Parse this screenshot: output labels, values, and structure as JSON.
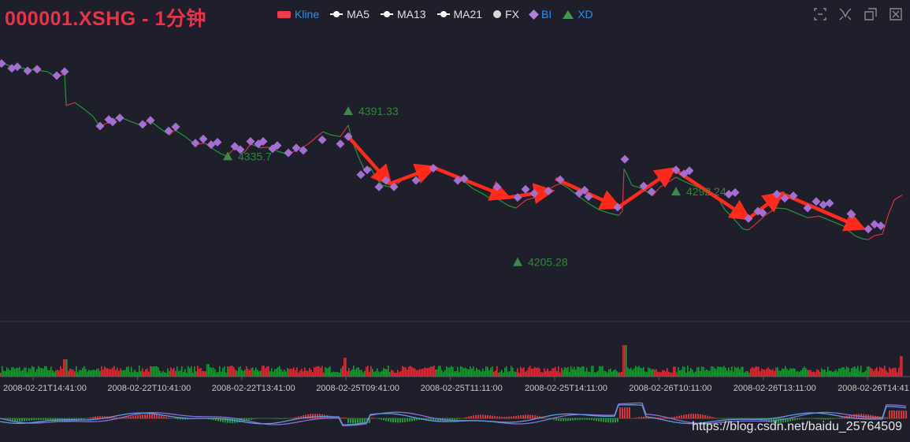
{
  "title": "000001.XSHG - 1分钟",
  "legend": [
    {
      "label": "Kline",
      "icon": "rect",
      "color": "#ee3a4e"
    },
    {
      "label": "MA5",
      "icon": "line",
      "color": "#ffffff"
    },
    {
      "label": "MA13",
      "icon": "line",
      "color": "#ffffff"
    },
    {
      "label": "MA21",
      "icon": "line",
      "color": "#ffffff"
    },
    {
      "label": "FX",
      "icon": "dot",
      "color": "#d9d9d9"
    },
    {
      "label": "BI",
      "icon": "diamond",
      "color": "#b07fe0"
    },
    {
      "label": "XD",
      "icon": "triangle",
      "color": "#3d9a48"
    }
  ],
  "toolbox": [
    "zoom-select-icon",
    "zoom-reset-icon",
    "restore-icon",
    "save-image-icon"
  ],
  "watermark": "https://blog.csdn.net/baidu_25764509",
  "colors": {
    "background": "#1f1f2b",
    "up": "#d5343f",
    "down": "#1c9a3a",
    "bi": "#a46fd0",
    "xd": "#3d8a48",
    "arrow": "#ff2a1a",
    "label": "#2d8a3a"
  },
  "chart_data": {
    "type": "line",
    "title": "000001.XSHG - 1分钟",
    "x_ticks": [
      "2008-02-21T14:41:00",
      "2008-02-22T10:41:00",
      "2008-02-22T13:41:00",
      "2008-02-25T09:41:00",
      "2008-02-25T11:11:00",
      "2008-02-25T14:11:00",
      "2008-02-26T10:11:00",
      "2008-02-26T13:11:00",
      "2008-02-26T14:41"
    ],
    "price_ylim": [
      4140,
      4470
    ],
    "price": [
      [
        0,
        4452
      ],
      [
        15,
        4446
      ],
      [
        30,
        4444
      ],
      [
        45,
        4442
      ],
      [
        60,
        4440
      ],
      [
        70,
        4434
      ],
      [
        82,
        4437
      ],
      [
        84,
        4398
      ],
      [
        95,
        4402
      ],
      [
        105,
        4395
      ],
      [
        118,
        4385
      ],
      [
        127,
        4372
      ],
      [
        138,
        4378
      ],
      [
        152,
        4384
      ],
      [
        165,
        4379
      ],
      [
        178,
        4374
      ],
      [
        190,
        4380
      ],
      [
        203,
        4370
      ],
      [
        215,
        4362
      ],
      [
        222,
        4368
      ],
      [
        235,
        4360
      ],
      [
        248,
        4350
      ],
      [
        260,
        4352
      ],
      [
        270,
        4345
      ],
      [
        280,
        4339
      ],
      [
        288,
        4336
      ],
      [
        298,
        4346
      ],
      [
        310,
        4340
      ],
      [
        318,
        4351
      ],
      [
        330,
        4346
      ],
      [
        340,
        4347
      ],
      [
        352,
        4342
      ],
      [
        365,
        4338
      ],
      [
        378,
        4344
      ],
      [
        390,
        4350
      ],
      [
        400,
        4358
      ],
      [
        410,
        4366
      ],
      [
        420,
        4362
      ],
      [
        432,
        4360
      ],
      [
        442,
        4374
      ],
      [
        447,
        4355
      ],
      [
        455,
        4335
      ],
      [
        462,
        4320
      ],
      [
        470,
        4322
      ],
      [
        478,
        4308
      ],
      [
        485,
        4300
      ],
      [
        495,
        4298
      ],
      [
        505,
        4302
      ],
      [
        515,
        4310
      ],
      [
        528,
        4314
      ],
      [
        545,
        4322
      ],
      [
        552,
        4322
      ],
      [
        565,
        4318
      ],
      [
        580,
        4310
      ],
      [
        590,
        4304
      ],
      [
        600,
        4296
      ],
      [
        612,
        4290
      ],
      [
        625,
        4282
      ],
      [
        632,
        4283
      ],
      [
        645,
        4275
      ],
      [
        655,
        4272
      ],
      [
        668,
        4282
      ],
      [
        680,
        4285
      ],
      [
        692,
        4292
      ],
      [
        705,
        4300
      ],
      [
        712,
        4302
      ],
      [
        722,
        4296
      ],
      [
        735,
        4286
      ],
      [
        748,
        4277
      ],
      [
        760,
        4270
      ],
      [
        772,
        4266
      ],
      [
        785,
        4263
      ],
      [
        790,
        4268
      ],
      [
        792,
        4320
      ],
      [
        795,
        4315
      ],
      [
        802,
        4300
      ],
      [
        815,
        4296
      ],
      [
        828,
        4287
      ],
      [
        838,
        4298
      ],
      [
        850,
        4305
      ],
      [
        858,
        4310
      ],
      [
        870,
        4304
      ],
      [
        885,
        4298
      ],
      [
        900,
        4292
      ],
      [
        910,
        4286
      ],
      [
        920,
        4270
      ],
      [
        932,
        4258
      ],
      [
        943,
        4246
      ],
      [
        950,
        4245
      ],
      [
        960,
        4253
      ],
      [
        970,
        4262
      ],
      [
        985,
        4272
      ],
      [
        998,
        4271
      ],
      [
        1010,
        4266
      ],
      [
        1025,
        4260
      ],
      [
        1040,
        4262
      ],
      [
        1055,
        4256
      ],
      [
        1070,
        4250
      ],
      [
        1085,
        4238
      ],
      [
        1095,
        4234
      ],
      [
        1102,
        4233
      ],
      [
        1110,
        4238
      ],
      [
        1120,
        4240
      ],
      [
        1128,
        4265
      ],
      [
        1135,
        4282
      ],
      [
        1145,
        4288
      ]
    ],
    "bi": [
      [
        2,
        4450
      ],
      [
        15,
        4444
      ],
      [
        22,
        4446
      ],
      [
        35,
        4441
      ],
      [
        47,
        4443
      ],
      [
        72,
        4435
      ],
      [
        82,
        4440
      ],
      [
        127,
        4373
      ],
      [
        138,
        4381
      ],
      [
        143,
        4378
      ],
      [
        152,
        4383
      ],
      [
        181,
        4375
      ],
      [
        191,
        4380
      ],
      [
        214,
        4367
      ],
      [
        223,
        4372
      ],
      [
        248,
        4352
      ],
      [
        258,
        4357
      ],
      [
        268,
        4350
      ],
      [
        276,
        4353
      ],
      [
        298,
        4348
      ],
      [
        305,
        4344
      ],
      [
        318,
        4354
      ],
      [
        328,
        4351
      ],
      [
        334,
        4354
      ],
      [
        346,
        4345
      ],
      [
        352,
        4349
      ],
      [
        366,
        4340
      ],
      [
        376,
        4346
      ],
      [
        385,
        4343
      ],
      [
        409,
        4356
      ],
      [
        432,
        4351
      ],
      [
        442,
        4360
      ],
      [
        458,
        4313
      ],
      [
        466,
        4319
      ],
      [
        481,
        4298
      ],
      [
        490,
        4306
      ],
      [
        500,
        4298
      ],
      [
        528,
        4306
      ],
      [
        550,
        4321
      ],
      [
        581,
        4306
      ],
      [
        589,
        4308
      ],
      [
        631,
        4298
      ],
      [
        657,
        4285
      ],
      [
        667,
        4295
      ],
      [
        678,
        4290
      ],
      [
        696,
        4293
      ],
      [
        711,
        4307
      ],
      [
        735,
        4290
      ],
      [
        742,
        4294
      ],
      [
        747,
        4286
      ],
      [
        784,
        4273
      ],
      [
        793,
        4332
      ],
      [
        817,
        4299
      ],
      [
        827,
        4292
      ],
      [
        858,
        4319
      ],
      [
        868,
        4314
      ],
      [
        875,
        4318
      ],
      [
        925,
        4289
      ],
      [
        933,
        4291
      ],
      [
        950,
        4259
      ],
      [
        962,
        4268
      ],
      [
        968,
        4266
      ],
      [
        986,
        4289
      ],
      [
        996,
        4284
      ],
      [
        1007,
        4287
      ],
      [
        1025,
        4272
      ],
      [
        1036,
        4280
      ],
      [
        1045,
        4276
      ],
      [
        1053,
        4278
      ],
      [
        1080,
        4265
      ],
      [
        1081,
        4264
      ],
      [
        1102,
        4246
      ],
      [
        1110,
        4252
      ],
      [
        1118,
        4250
      ]
    ],
    "xd": [
      {
        "x": 289,
        "y": 4335.7,
        "label": "4335.7"
      },
      {
        "x": 442,
        "y": 4391.33,
        "label": "4391.33"
      },
      {
        "x": 657,
        "y": 4205.28,
        "label": "4205.28"
      },
      {
        "x": 858,
        "y": 4292.24,
        "label": "4292.24"
      }
    ],
    "arrows": [
      [
        [
          442,
          4360
        ],
        [
          495,
          4302
        ]
      ],
      [
        [
          495,
          4302
        ],
        [
          550,
          4322
        ]
      ],
      [
        [
          550,
          4322
        ],
        [
          645,
          4285
        ]
      ],
      [
        [
          645,
          4285
        ],
        [
          700,
          4293
        ]
      ],
      [
        [
          705,
          4308
        ],
        [
          785,
          4273
        ]
      ],
      [
        [
          785,
          4273
        ],
        [
          855,
          4320
        ]
      ],
      [
        [
          855,
          4320
        ],
        [
          950,
          4259
        ]
      ],
      [
        [
          950,
          4259
        ],
        [
          992,
          4290
        ]
      ],
      [
        [
          992,
          4290
        ],
        [
          1095,
          4247
        ]
      ]
    ],
    "volume_spikes": [
      [
        82,
        22
      ],
      [
        263,
        16
      ],
      [
        437,
        24
      ],
      [
        792,
        40
      ],
      [
        1143,
        26
      ]
    ],
    "macd_ylim": [
      -1,
      1
    ]
  }
}
